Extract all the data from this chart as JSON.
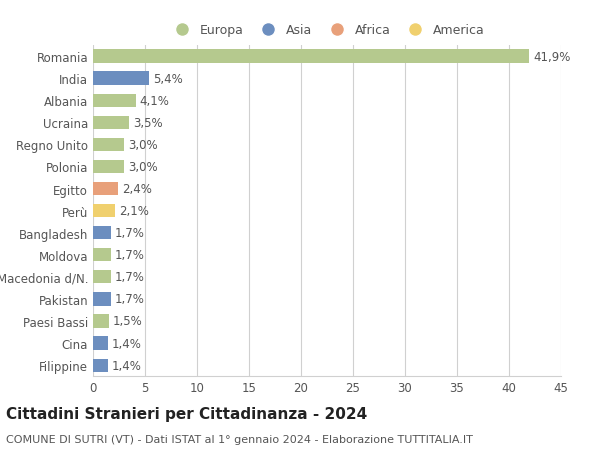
{
  "countries": [
    "Romania",
    "India",
    "Albania",
    "Ucraina",
    "Regno Unito",
    "Polonia",
    "Egitto",
    "Perù",
    "Bangladesh",
    "Moldova",
    "Macedonia d/N.",
    "Pakistan",
    "Paesi Bassi",
    "Cina",
    "Filippine"
  ],
  "values": [
    41.9,
    5.4,
    4.1,
    3.5,
    3.0,
    3.0,
    2.4,
    2.1,
    1.7,
    1.7,
    1.7,
    1.7,
    1.5,
    1.4,
    1.4
  ],
  "labels": [
    "41,9%",
    "5,4%",
    "4,1%",
    "3,5%",
    "3,0%",
    "3,0%",
    "2,4%",
    "2,1%",
    "1,7%",
    "1,7%",
    "1,7%",
    "1,7%",
    "1,5%",
    "1,4%",
    "1,4%"
  ],
  "continents": [
    "Europa",
    "Asia",
    "Europa",
    "Europa",
    "Europa",
    "Europa",
    "Africa",
    "America",
    "Asia",
    "Europa",
    "Europa",
    "Asia",
    "Europa",
    "Asia",
    "Asia"
  ],
  "continent_colors": {
    "Europa": "#b5c98e",
    "Asia": "#6c8ebf",
    "Africa": "#e8a07a",
    "America": "#f0d06e"
  },
  "legend_order": [
    "Europa",
    "Asia",
    "Africa",
    "America"
  ],
  "xlim": [
    0,
    45
  ],
  "xticks": [
    0,
    5,
    10,
    15,
    20,
    25,
    30,
    35,
    40,
    45
  ],
  "title": "Cittadini Stranieri per Cittadinanza - 2024",
  "subtitle": "COMUNE DI SUTRI (VT) - Dati ISTAT al 1° gennaio 2024 - Elaborazione TUTTITALIA.IT",
  "background_color": "#ffffff",
  "bar_height": 0.6,
  "grid_color": "#d0d0d0",
  "label_fontsize": 8.5,
  "ytick_fontsize": 8.5,
  "xtick_fontsize": 8.5,
  "title_fontsize": 11,
  "subtitle_fontsize": 8
}
